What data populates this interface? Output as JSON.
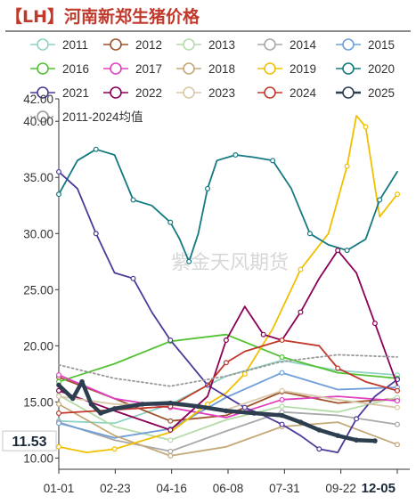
{
  "title": "【LH】河南新郑生猪价格",
  "watermark": "紫金天风期货",
  "current_value_label": "11.53",
  "chart_data": {
    "type": "line",
    "title": "【LH】河南新郑生猪价格",
    "ylim": [
      9,
      42
    ],
    "y_ticks": [
      "10.00",
      "15.00",
      "20.00",
      "25.00",
      "30.00",
      "35.00",
      "40.00",
      "42.00"
    ],
    "x_ticks": [
      "01-01",
      "02-23",
      "04-16",
      "06-08",
      "07-31",
      "09-22",
      "12-05"
    ],
    "x_range_days": [
      0,
      364
    ],
    "legend_placement": "top",
    "series": [
      {
        "name": "2011",
        "color": "#8fd3c4",
        "style": "solid",
        "x": [
          0,
          60,
          120,
          180,
          240,
          300,
          364
        ],
        "y": [
          13.3,
          13.1,
          14.8,
          17.3,
          18.7,
          17.8,
          17.4
        ]
      },
      {
        "name": "2012",
        "color": "#a0522d",
        "style": "solid",
        "x": [
          0,
          60,
          120,
          180,
          240,
          300,
          364
        ],
        "y": [
          17.2,
          15.3,
          13.3,
          13.8,
          15.9,
          14.9,
          15.3
        ]
      },
      {
        "name": "2013",
        "color": "#b5dba8",
        "style": "solid",
        "x": [
          0,
          60,
          120,
          180,
          240,
          300,
          364
        ],
        "y": [
          15.6,
          12.8,
          11.6,
          13.4,
          14.6,
          14.1,
          15.4
        ]
      },
      {
        "name": "2014",
        "color": "#a8a8a8",
        "style": "solid",
        "x": [
          0,
          60,
          120,
          180,
          240,
          300,
          364
        ],
        "y": [
          13.2,
          11.6,
          10.6,
          12.4,
          14.1,
          13.8,
          13.0
        ]
      },
      {
        "name": "2015",
        "color": "#6f9fd8",
        "style": "solid",
        "x": [
          0,
          60,
          120,
          180,
          240,
          300,
          364
        ],
        "y": [
          13.1,
          11.8,
          12.6,
          15.4,
          17.6,
          16.1,
          16.3
        ]
      },
      {
        "name": "2016",
        "color": "#52c234",
        "style": "solid",
        "x": [
          0,
          60,
          120,
          180,
          240,
          300,
          364
        ],
        "y": [
          16.8,
          18.4,
          20.4,
          21.0,
          19.0,
          17.6,
          17.1
        ]
      },
      {
        "name": "2017",
        "color": "#e040c0",
        "style": "solid",
        "x": [
          0,
          60,
          120,
          180,
          240,
          300,
          364
        ],
        "y": [
          17.4,
          15.3,
          14.5,
          13.6,
          15.2,
          15.5,
          15.1
        ]
      },
      {
        "name": "2018",
        "color": "#c4a878",
        "style": "solid",
        "x": [
          0,
          60,
          120,
          180,
          240,
          300,
          364
        ],
        "y": [
          14.8,
          12.0,
          10.2,
          11.0,
          12.8,
          13.2,
          11.2
        ]
      },
      {
        "name": "2019",
        "color": "#f0c000",
        "style": "solid",
        "x": [
          0,
          30,
          60,
          120,
          160,
          180,
          200,
          230,
          260,
          290,
          310,
          320,
          330,
          345,
          364
        ],
        "y": [
          11.0,
          10.5,
          10.8,
          12.3,
          14.8,
          15.8,
          17.5,
          21.5,
          26.8,
          30.0,
          36.0,
          40.5,
          39.5,
          31.5,
          33.5
        ]
      },
      {
        "name": "2020",
        "color": "#137a80",
        "style": "solid",
        "x": [
          0,
          20,
          40,
          60,
          80,
          100,
          120,
          130,
          140,
          150,
          160,
          170,
          190,
          210,
          230,
          250,
          270,
          290,
          310,
          330,
          345,
          364
        ],
        "y": [
          33.5,
          36.5,
          37.5,
          37.0,
          33.0,
          32.5,
          31.0,
          29.5,
          27.5,
          30.0,
          34.0,
          36.5,
          37.0,
          36.8,
          36.5,
          34.0,
          30.0,
          29.0,
          28.5,
          29.5,
          33.0,
          35.5
        ]
      },
      {
        "name": "2021",
        "color": "#4b3a9a",
        "style": "solid",
        "x": [
          0,
          20,
          40,
          60,
          80,
          100,
          120,
          140,
          160,
          180,
          200,
          220,
          240,
          260,
          280,
          300,
          320,
          340,
          364
        ],
        "y": [
          35.5,
          34.0,
          30.0,
          26.5,
          26.0,
          23.0,
          20.5,
          18.5,
          16.5,
          15.5,
          14.5,
          13.8,
          13.0,
          12.0,
          10.8,
          10.5,
          13.5,
          15.5,
          17.0
        ]
      },
      {
        "name": "2022",
        "color": "#8b0057",
        "style": "solid",
        "x": [
          0,
          60,
          120,
          160,
          180,
          200,
          220,
          240,
          260,
          280,
          300,
          320,
          340,
          364
        ],
        "y": [
          16.0,
          14.2,
          12.5,
          15.5,
          20.5,
          23.5,
          21.0,
          20.5,
          23.0,
          26.0,
          28.5,
          26.5,
          22.0,
          16.5
        ]
      },
      {
        "name": "2023",
        "color": "#d8c8a8",
        "style": "solid",
        "x": [
          0,
          60,
          120,
          180,
          240,
          300,
          364
        ],
        "y": [
          15.5,
          14.8,
          14.7,
          14.3,
          16.0,
          15.2,
          14.5
        ]
      },
      {
        "name": "2024",
        "color": "#c0392b",
        "style": "solid",
        "x": [
          0,
          60,
          120,
          160,
          180,
          200,
          240,
          280,
          300,
          330,
          364
        ],
        "y": [
          14.0,
          14.3,
          14.6,
          16.5,
          18.5,
          19.5,
          20.5,
          20.0,
          18.0,
          16.8,
          16.0
        ]
      },
      {
        "name": "2025",
        "color": "#2c3e50",
        "style": "bold",
        "x": [
          0,
          15,
          25,
          35,
          45,
          60,
          90,
          120,
          150,
          180,
          210,
          240,
          260,
          280,
          300,
          320,
          340
        ],
        "y": [
          16.5,
          15.3,
          16.8,
          14.8,
          14.0,
          14.4,
          14.8,
          14.9,
          14.6,
          14.2,
          14.0,
          13.8,
          13.2,
          12.5,
          12.0,
          11.6,
          11.53
        ]
      },
      {
        "name": "2011-2024均值",
        "color": "#999999",
        "style": "dotted",
        "x": [
          0,
          60,
          120,
          180,
          240,
          300,
          364
        ],
        "y": [
          18.3,
          17.1,
          16.4,
          17.3,
          18.6,
          19.2,
          19.0
        ]
      }
    ]
  }
}
